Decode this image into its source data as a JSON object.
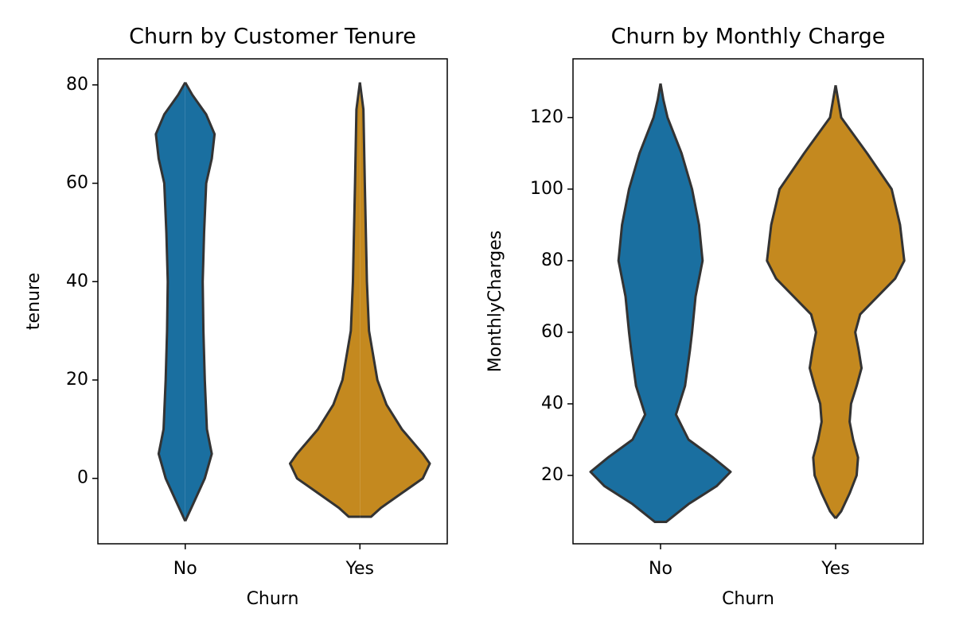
{
  "chart_data": [
    {
      "type": "violin",
      "title": "Churn by Customer Tenure",
      "xlabel": "Churn",
      "ylabel": "tenure",
      "categories": [
        "No",
        "Yes"
      ],
      "ylim": [
        -13.3,
        85.3
      ],
      "yticks": [
        0,
        20,
        40,
        60,
        80
      ],
      "series": [
        {
          "name": "No",
          "color": "#1a6fa0",
          "y": [
            80.5,
            78,
            74,
            70,
            65,
            60,
            50,
            40,
            30,
            20,
            10,
            5,
            0,
            -5,
            -8.7
          ],
          "width": [
            0,
            0.1,
            0.3,
            0.42,
            0.38,
            0.3,
            0.27,
            0.25,
            0.26,
            0.28,
            0.31,
            0.38,
            0.28,
            0.12,
            0
          ]
        },
        {
          "name": "Yes",
          "color": "#c4891f",
          "y": [
            80.5,
            75,
            60,
            40,
            30,
            20,
            15,
            10,
            5,
            3,
            0,
            -3,
            -6,
            -7.8,
            -7.8
          ],
          "width": [
            0,
            0.05,
            0.07,
            0.1,
            0.13,
            0.25,
            0.38,
            0.6,
            0.9,
            1.0,
            0.9,
            0.6,
            0.3,
            0.16,
            0
          ]
        }
      ]
    },
    {
      "type": "violin",
      "title": "Churn by Monthly Charge",
      "xlabel": "Churn",
      "ylabel": "MonthlyCharges",
      "categories": [
        "No",
        "Yes"
      ],
      "ylim": [
        0.9,
        136.4
      ],
      "yticks": [
        20,
        40,
        60,
        80,
        100,
        120
      ],
      "series": [
        {
          "name": "No",
          "color": "#1a6fa0",
          "y": [
            129.5,
            125,
            120,
            110,
            100,
            90,
            80,
            70,
            60,
            55,
            45,
            37,
            30,
            25,
            21,
            17,
            12,
            7,
            7
          ],
          "width": [
            0,
            0.04,
            0.1,
            0.3,
            0.45,
            0.55,
            0.6,
            0.5,
            0.45,
            0.42,
            0.35,
            0.22,
            0.4,
            0.75,
            1.0,
            0.8,
            0.4,
            0.08,
            0
          ]
        },
        {
          "name": "Yes",
          "color": "#c4891f",
          "y": [
            129,
            120,
            110,
            100,
            90,
            80,
            75,
            70,
            65,
            60,
            55,
            50,
            45,
            40,
            35,
            30,
            25,
            20,
            15,
            10,
            8
          ],
          "width": [
            0,
            0.08,
            0.45,
            0.8,
            0.92,
            0.98,
            0.85,
            0.6,
            0.35,
            0.28,
            0.33,
            0.37,
            0.3,
            0.22,
            0.2,
            0.25,
            0.32,
            0.3,
            0.2,
            0.08,
            0
          ]
        }
      ]
    }
  ]
}
